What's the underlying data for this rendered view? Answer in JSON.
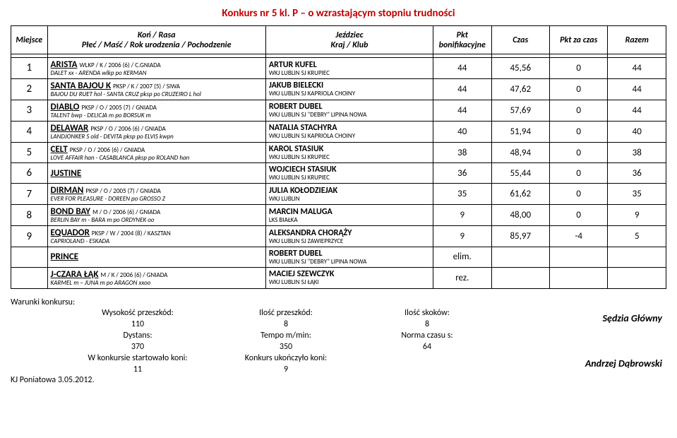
{
  "title": "Konkurs nr 5 kl. P – o wzrastającym stopniu trudności",
  "header": {
    "miejsce": "Miejsce",
    "horse": "Koń / Rasa\nPłeć / Maść / Rok urodzenia / Pochodzenie",
    "rider": "Jeździec\nKraj / Klub",
    "pkt": "Pkt bonifikacyjne",
    "czas": "Czas",
    "pzc": "Pkt za czas",
    "razem": "Razem"
  },
  "rows": [
    {
      "place": "1",
      "horse": "ARISTA",
      "det": "WLKP / K / 2006 (6) / C.GNIADA",
      "ped": "DALET xx - ARENDA wlkp po KERMAN",
      "rider": "ARTUR KUFEL",
      "club": "WKJ LUBLIN SJ KRUPIEC",
      "pkt": "44",
      "czas": "45,56",
      "pzc": "0",
      "razem": "44"
    },
    {
      "place": "2",
      "horse": "SANTA BAJOU K",
      "det": "PKSP / K / 2007 (5) / SIWA",
      "ped": "BAJOU DU RUET hol - SANTA CRUZ pksp po CRUZEIRO L hol",
      "rider": "JAKUB BIELECKI",
      "club": "WKJ LUBLIN SJ KAPRIOLA CHOINY",
      "pkt": "44",
      "czas": "47,62",
      "pzc": "0",
      "razem": "44"
    },
    {
      "place": "3",
      "horse": "DIABLO",
      "det": "PKSP / O / 2005 (7) / GNIADA",
      "ped": "TALENT bwp - DELICJA m po BORSUK m",
      "rider": "ROBERT DUBEL",
      "club": "WKJ LUBLIN SJ \"DEBRY\" LIPINA NOWA",
      "pkt": "44",
      "czas": "57,69",
      "pzc": "0",
      "razem": "44"
    },
    {
      "place": "4",
      "horse": "DELAWAR",
      "det": "PKSP / O / 2006 (6) / GNIADA",
      "ped": "LANDJONKER S old - DEVITA pksp po ELVIS kwpn",
      "rider": "NATALIA STACHYRA",
      "club": "WKJ LUBLIN SJ KAPRIOLA CHOINY",
      "pkt": "40",
      "czas": "51,94",
      "pzc": "0",
      "razem": "40"
    },
    {
      "place": "5",
      "horse": "CELT",
      "det": "PKSP / O / 2006 (6) / GNIADA",
      "ped": "LOVE AFFAIR han - CASABLANCA pksp po ROLAND han",
      "rider": "KAROL STASIUK",
      "club": "WKJ LUBLIN SJ KRUPIEC",
      "pkt": "38",
      "czas": "48,94",
      "pzc": "0",
      "razem": "38"
    },
    {
      "place": "6",
      "horse": "JUSTINE",
      "det": "",
      "ped": "",
      "rider": "WOJCIECH STASIUK",
      "club": "WKJ LUBLIN SJ KRUPIEC",
      "pkt": "36",
      "czas": "55,44",
      "pzc": "0",
      "razem": "36"
    },
    {
      "place": "7",
      "horse": "DIRMAN",
      "det": "PKSP / O / 2005 (7) / GNIADA",
      "ped": "EVER FOR PLEASURE - DOREEN po GROSSO Z",
      "rider": "JULIA KOŁODZIEJAK",
      "club": "WKJ LUBLIN",
      "pkt": "35",
      "czas": "61,62",
      "pzc": "0",
      "razem": "35"
    },
    {
      "place": "8",
      "horse": "BOND BAY",
      "det": "M / O / 2006 (6) / GNIADA",
      "ped": "BERLIN BAY m - BARA m po ORDYNEK oo",
      "rider": "MARCIN MALUGA",
      "club": "LKS BIAŁKA",
      "pkt": "9",
      "czas": "48,00",
      "pzc": "0",
      "razem": "9"
    },
    {
      "place": "9",
      "horse": "EQUADOR",
      "det": "PKSP / W / 2004 (8) / KASZTAN",
      "ped": "CAPRIOLAND - ESKADA",
      "rider": "ALEKSANDRA CHORĄŻY",
      "club": "WKJ LUBLIN SJ ZAWIEPRZYCE",
      "pkt": "9",
      "czas": "85,97",
      "pzc": "-4",
      "razem": "5"
    },
    {
      "place": "",
      "horse": "PRINCE",
      "det": "",
      "ped": "",
      "rider": "ROBERT DUBEL",
      "club": "WKJ LUBLIN SJ \"DEBRY\" LIPINA NOWA",
      "pkt": "elim.",
      "czas": "",
      "pzc": "",
      "razem": ""
    },
    {
      "place": "",
      "horse": "J-CZARA ŁĄK",
      "det": "M / K / 2006 (6) / GNIADA",
      "ped": "KARMEL m – JUNA m po ARAGON xxoo",
      "rider": "MACIEJ SZEWCZYK",
      "club": "WKJ LUBLIN SJ ŁĄKI",
      "pkt": "rez.",
      "czas": "",
      "pzc": "",
      "razem": ""
    }
  ],
  "footer": {
    "warunki": "Warunki konkursu:",
    "wys_label": "Wysokość przeszkód:",
    "wys": "110",
    "dyst_label": "Dystans:",
    "dyst": "370",
    "start_label": "W konkursie startowało koni:",
    "start": "11",
    "ilosc_p_label": "Ilość przeszkód:",
    "ilosc_p": "8",
    "tempo_label": "Tempo m/min:",
    "tempo": "350",
    "ukon_label": "Konkurs ukończyło koni:",
    "ukon": "9",
    "ilosc_s_label": "Ilość skoków:",
    "ilosc_s": "8",
    "norma_label": "Norma czasu s:",
    "norma": "64",
    "sedzia": "Sędzia Główny",
    "referee": "Andrzej Dąbrowski",
    "loc": "KJ Poniatowa  3.05.2012."
  }
}
